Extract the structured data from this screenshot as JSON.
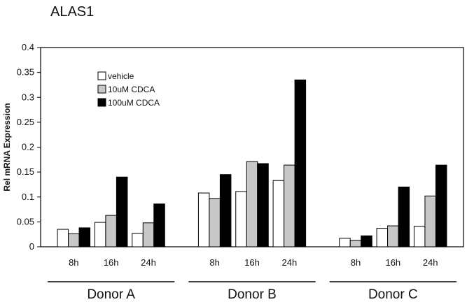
{
  "chart_data": {
    "type": "bar",
    "title": "ALAS1",
    "xlabel": "",
    "ylabel": "Rel mRNA Expression",
    "ylim": [
      0,
      0.4
    ],
    "yticks": [
      "0",
      "0.05",
      "0.1",
      "0.15",
      "0.2",
      "0.25",
      "0.3",
      "0.35",
      "0.4"
    ],
    "grid": false,
    "legend_position": "top-left",
    "groups": [
      {
        "name": "Donor A",
        "categories": [
          "8h",
          "16h",
          "24h"
        ],
        "series": [
          {
            "name": "vehicle",
            "values": [
              0.035,
              0.049,
              0.027
            ]
          },
          {
            "name": "10uM CDCA",
            "values": [
              0.026,
              0.063,
              0.048
            ]
          },
          {
            "name": "100uM CDCA",
            "values": [
              0.038,
              0.14,
              0.086
            ]
          }
        ]
      },
      {
        "name": "Donor B",
        "categories": [
          "8h",
          "16h",
          "24h"
        ],
        "series": [
          {
            "name": "vehicle",
            "values": [
              0.108,
              0.111,
              0.133
            ]
          },
          {
            "name": "10uM CDCA",
            "values": [
              0.097,
              0.171,
              0.164
            ]
          },
          {
            "name": "100uM CDCA",
            "values": [
              0.145,
              0.167,
              0.335
            ]
          }
        ]
      },
      {
        "name": "Donor C",
        "categories": [
          "8h",
          "16h",
          "24h"
        ],
        "series": [
          {
            "name": "vehicle",
            "values": [
              0.017,
              0.037,
              0.041
            ]
          },
          {
            "name": "10uM CDCA",
            "values": [
              0.013,
              0.042,
              0.102
            ]
          },
          {
            "name": "100uM CDCA",
            "values": [
              0.022,
              0.12,
              0.164
            ]
          }
        ]
      }
    ],
    "series_colors": {
      "vehicle": "#ffffff",
      "10uM CDCA": "#c8c8c8",
      "100uM CDCA": "#000000"
    },
    "legend": [
      "vehicle",
      "10uM CDCA",
      "100uM CDCA"
    ]
  }
}
